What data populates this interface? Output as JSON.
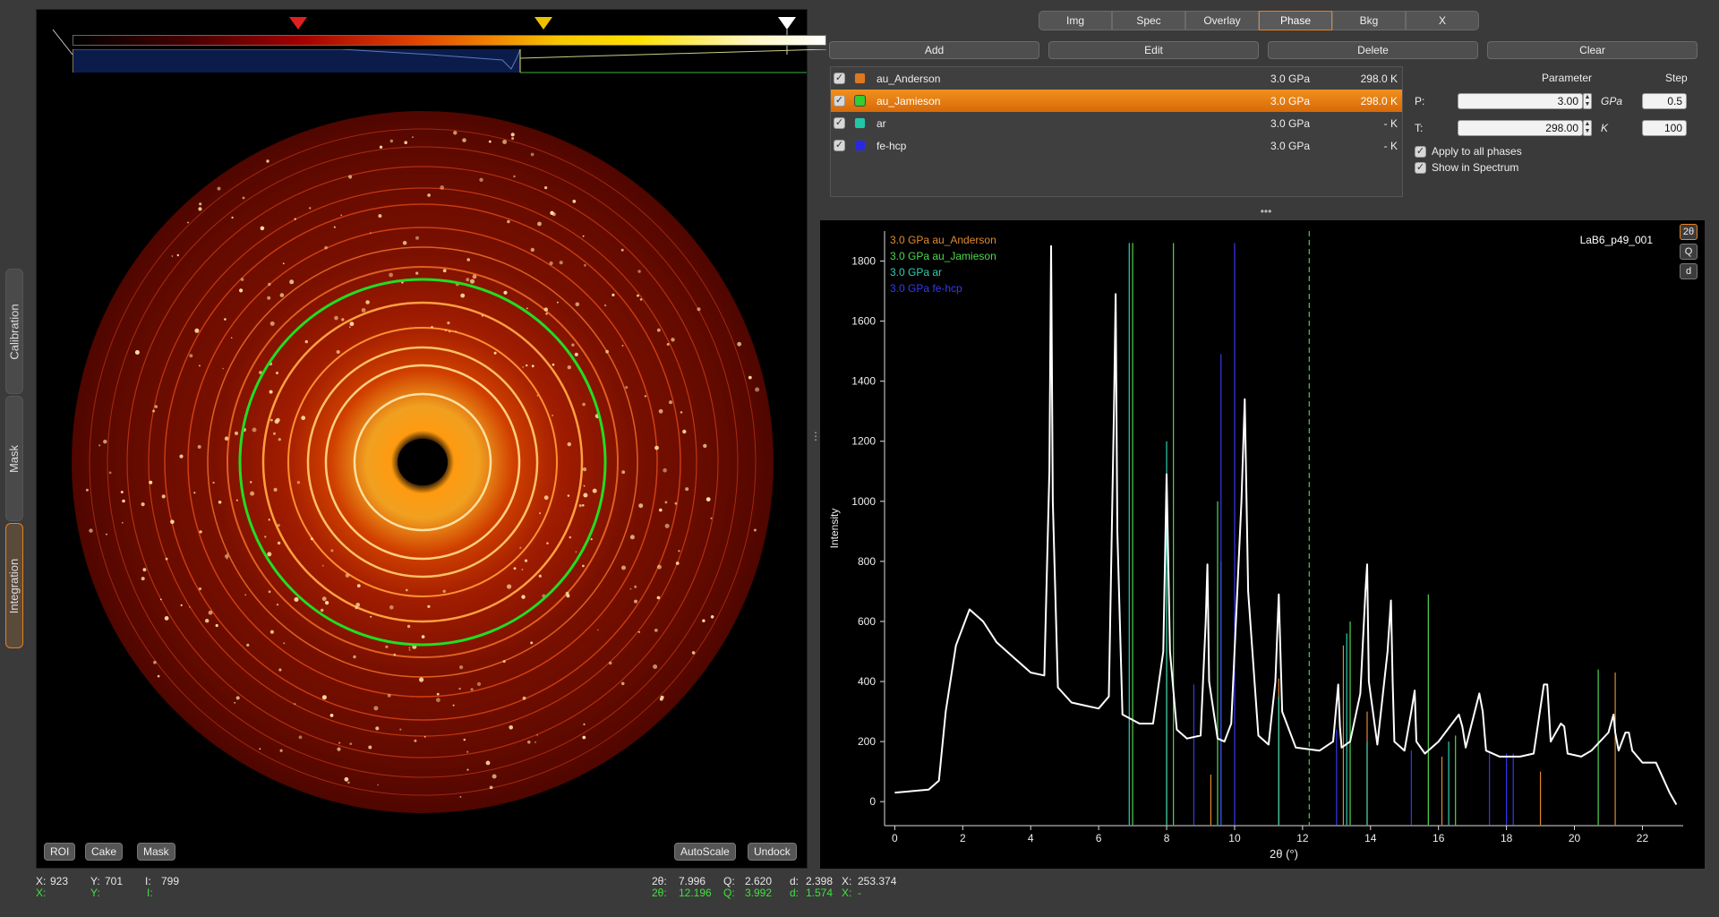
{
  "side_tabs": [
    {
      "label": "Calibration",
      "active": false
    },
    {
      "label": "Mask",
      "active": false
    },
    {
      "label": "Integration",
      "active": true
    }
  ],
  "image_panel": {
    "buttons_left": [
      "ROI",
      "Cake",
      "Mask"
    ],
    "buttons_right": [
      "AutoScale",
      "Undock"
    ],
    "colorbar_markers": [
      {
        "name": "min-marker",
        "color": "#000000"
      },
      {
        "name": "red-marker",
        "color": "#e02020"
      },
      {
        "name": "yellow-marker",
        "color": "#f0c000"
      },
      {
        "name": "max-marker",
        "color": "#ffffff"
      }
    ],
    "ring_color": "#22dd22"
  },
  "top_tabs": [
    {
      "label": "Img",
      "active": false
    },
    {
      "label": "Spec",
      "active": false
    },
    {
      "label": "Overlay",
      "active": false
    },
    {
      "label": "Phase",
      "active": true
    },
    {
      "label": "Bkg",
      "active": false
    },
    {
      "label": "X",
      "active": false
    }
  ],
  "actions": [
    "Add",
    "Edit",
    "Delete",
    "Clear"
  ],
  "phases": [
    {
      "name": "au_Anderson",
      "pressure": "3.0 GPa",
      "temperature": "298.0 K",
      "color": "#e07820",
      "checked": true,
      "selected": false
    },
    {
      "name": "au_Jamieson",
      "pressure": "3.0 GPa",
      "temperature": "298.0 K",
      "color": "#33cc33",
      "checked": true,
      "selected": true
    },
    {
      "name": "ar",
      "pressure": "3.0 GPa",
      "temperature": "- K",
      "color": "#20c8a8",
      "checked": true,
      "selected": false
    },
    {
      "name": "fe-hcp",
      "pressure": "3.0 GPa",
      "temperature": "- K",
      "color": "#2828e0",
      "checked": true,
      "selected": false
    }
  ],
  "parameters": {
    "header_param": "Parameter",
    "header_step": "Step",
    "p_label": "P:",
    "p_value": "3.00",
    "p_unit": "GPa",
    "p_step": "0.5",
    "t_label": "T:",
    "t_value": "298.00",
    "t_unit": "K",
    "t_step": "100",
    "apply_all": "Apply to all phases",
    "show_spectrum": "Show in Spectrum"
  },
  "spectrum": {
    "file_label": "LaB6_p49_001",
    "unit_buttons": [
      "2θ",
      "Q",
      "d"
    ],
    "active_unit": "2θ"
  },
  "chart_data": {
    "type": "line",
    "xlabel": "2θ (°)",
    "ylabel": "Intensity",
    "xlim": [
      -0.3,
      23.2
    ],
    "ylim": [
      -80,
      1900
    ],
    "xticks": [
      0,
      2,
      4,
      6,
      8,
      10,
      12,
      14,
      16,
      18,
      20,
      22
    ],
    "yticks": [
      0,
      200,
      400,
      600,
      800,
      1000,
      1200,
      1400,
      1600,
      1800
    ],
    "legend": [
      {
        "label": "3.0 GPa au_Anderson",
        "color": "#e08a30"
      },
      {
        "label": "3.0 GPa au_Jamieson",
        "color": "#50d850"
      },
      {
        "label": "3.0 GPa ar",
        "color": "#30d0b0"
      },
      {
        "label": "3.0 GPa fe-hcp",
        "color": "#3838f0"
      }
    ],
    "cursor_x": 12.196,
    "series": [
      {
        "name": "LaB6_p49_001",
        "color": "#ffffff",
        "x": [
          0,
          1.0,
          1.3,
          1.5,
          1.8,
          2.2,
          2.6,
          3.0,
          3.5,
          4.0,
          4.4,
          4.55,
          4.6,
          4.65,
          4.8,
          5.2,
          5.6,
          6.0,
          6.3,
          6.45,
          6.5,
          6.55,
          6.7,
          7.2,
          7.6,
          7.9,
          8.0,
          8.1,
          8.3,
          8.6,
          9.0,
          9.15,
          9.2,
          9.25,
          9.5,
          9.7,
          9.9,
          10.2,
          10.3,
          10.4,
          10.7,
          11.0,
          11.2,
          11.3,
          11.4,
          11.8,
          12.5,
          12.9,
          13.05,
          13.1,
          13.15,
          13.4,
          13.7,
          13.85,
          13.9,
          13.95,
          14.2,
          14.5,
          14.6,
          14.65,
          14.7,
          15.0,
          15.2,
          15.3,
          15.35,
          15.6,
          16.0,
          16.6,
          16.7,
          16.8,
          17.2,
          17.3,
          17.4,
          17.8,
          18.4,
          18.8,
          19.1,
          19.2,
          19.3,
          19.6,
          19.7,
          19.8,
          20.2,
          20.5,
          21.0,
          21.15,
          21.2,
          21.3,
          21.5,
          21.6,
          21.7,
          22.0,
          22.4,
          22.6,
          22.8,
          23.0
        ],
        "y": [
          30,
          40,
          70,
          300,
          520,
          640,
          600,
          530,
          480,
          430,
          420,
          1100,
          1850,
          1000,
          380,
          330,
          320,
          310,
          350,
          1300,
          1690,
          900,
          290,
          260,
          260,
          500,
          1090,
          500,
          240,
          210,
          220,
          600,
          790,
          400,
          210,
          200,
          260,
          1000,
          1340,
          700,
          220,
          190,
          400,
          690,
          300,
          180,
          170,
          200,
          390,
          250,
          180,
          200,
          360,
          700,
          790,
          400,
          190,
          500,
          670,
          400,
          200,
          170,
          300,
          370,
          200,
          160,
          200,
          290,
          250,
          180,
          360,
          300,
          170,
          150,
          150,
          160,
          390,
          390,
          200,
          260,
          250,
          160,
          150,
          170,
          230,
          290,
          230,
          170,
          230,
          230,
          170,
          130,
          130,
          80,
          30,
          -10
        ]
      }
    ],
    "reflections": [
      {
        "phase": "au_Anderson",
        "color": "#e08a30",
        "lines": [
          [
            8.0,
            770
          ],
          [
            9.3,
            90
          ],
          [
            11.3,
            410
          ],
          [
            13.2,
            520
          ],
          [
            13.9,
            300
          ],
          [
            16.1,
            150
          ],
          [
            19.0,
            100
          ],
          [
            21.2,
            430
          ]
        ]
      },
      {
        "phase": "au_Jamieson",
        "color": "#50d850",
        "lines": [
          [
            7.0,
            1860
          ],
          [
            8.2,
            1860
          ],
          [
            9.5,
            1000
          ],
          [
            13.4,
            600
          ],
          [
            15.7,
            690
          ],
          [
            16.5,
            220
          ],
          [
            20.7,
            440
          ]
        ]
      },
      {
        "phase": "ar",
        "color": "#30d0b0",
        "lines": [
          [
            6.9,
            1860
          ],
          [
            8.0,
            1200
          ],
          [
            9.6,
            800
          ],
          [
            11.3,
            350
          ],
          [
            13.3,
            560
          ],
          [
            13.9,
            200
          ],
          [
            16.3,
            200
          ]
        ]
      },
      {
        "phase": "fe-hcp",
        "color": "#3838f0",
        "lines": [
          [
            8.8,
            390
          ],
          [
            9.6,
            1490
          ],
          [
            10.0,
            1860
          ],
          [
            13.0,
            240
          ],
          [
            15.2,
            170
          ],
          [
            17.5,
            160
          ],
          [
            18.0,
            160
          ],
          [
            18.2,
            160
          ]
        ]
      }
    ]
  },
  "status": {
    "img_x_label": "X:",
    "img_x": "923",
    "img_y_label": "Y:",
    "img_y": "701",
    "img_i_label": "I:",
    "img_i": "799",
    "img_x2_label": "X:",
    "img_y2_label": "Y:",
    "img_i2_label": "I:",
    "tth_label": "2θ:",
    "tth": "7.996",
    "tth2": "12.196",
    "q_label": "Q:",
    "q": "2.620",
    "q2": "3.992",
    "d_label": "d:",
    "d": "2.398",
    "d2": "1.574",
    "x_label": "X:",
    "x": "253.374",
    "x2": "-"
  }
}
